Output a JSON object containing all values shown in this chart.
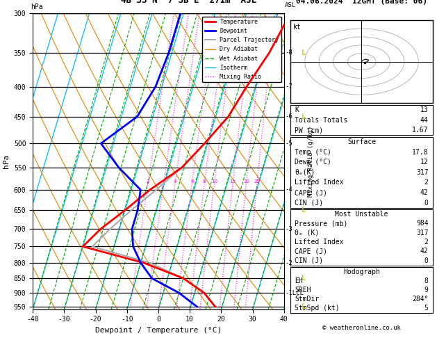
{
  "title_left": "4B°33'N  7°3B'E  271m  ASL",
  "title_right": "04.06.2024  12GMT (Base: 06)",
  "xlabel": "Dewpoint / Temperature (°C)",
  "ylabel_left": "hPa",
  "pressure_ticks": [
    300,
    350,
    400,
    450,
    500,
    550,
    600,
    650,
    700,
    750,
    800,
    850,
    900,
    950
  ],
  "km_labels": [
    [
      "8",
      350
    ],
    [
      "7",
      400
    ],
    [
      "6",
      450
    ],
    [
      "5",
      500
    ],
    [
      "4",
      600
    ],
    [
      "3",
      700
    ],
    [
      "2",
      800
    ],
    [
      "1LCL",
      900
    ]
  ],
  "temp_x": [
    14,
    11,
    7,
    4,
    -1,
    -6,
    -14,
    -20,
    -26,
    -30,
    -9,
    5,
    13,
    17.8
  ],
  "temp_p": [
    300,
    350,
    400,
    450,
    500,
    550,
    600,
    650,
    700,
    750,
    800,
    850,
    900,
    950
  ],
  "temp_color": "#ff0000",
  "dewp_x": [
    -21,
    -21,
    -22,
    -25,
    -34,
    -26,
    -17,
    -16,
    -16,
    -14,
    -10,
    -5,
    5,
    12
  ],
  "dewp_p": [
    300,
    350,
    400,
    450,
    500,
    550,
    600,
    650,
    700,
    750,
    800,
    850,
    900,
    950
  ],
  "dewp_color": "#0000ff",
  "parcel_x": [
    14,
    11,
    7,
    4,
    -1,
    -6,
    -12,
    -18,
    -23,
    -27,
    -7,
    5,
    13,
    17.8
  ],
  "parcel_p": [
    300,
    350,
    400,
    450,
    500,
    550,
    600,
    650,
    700,
    750,
    800,
    850,
    900,
    950
  ],
  "parcel_color": "#aaaaaa",
  "T_min": -40,
  "T_max": 40,
  "P_min": 300,
  "P_max": 960,
  "isotherm_color": "#00bbff",
  "dry_adiabat_color": "#dd8800",
  "wet_adiabat_color": "#00aa00",
  "mixing_ratio_color": "#ff00ff",
  "mixing_ratio_values": [
    2,
    3,
    4,
    6,
    8,
    10,
    15,
    20,
    25
  ],
  "skew_factor": 28,
  "info_K": "13",
  "info_TT": "44",
  "info_PW": "1.67",
  "info_surf_temp": "17.8",
  "info_surf_dewp": "12",
  "info_surf_theta": "317",
  "info_surf_li": "2",
  "info_surf_cape": "42",
  "info_surf_cin": "0",
  "info_mu_press": "984",
  "info_mu_theta": "317",
  "info_mu_li": "2",
  "info_mu_cape": "42",
  "info_mu_cin": "0",
  "info_eh": "8",
  "info_sreh": "9",
  "info_stmdir": "284°",
  "info_stmspd": "5",
  "copyright": "© weatheronline.co.uk",
  "lcl_pressure": 900,
  "yellow_barb_pressures": [
    350,
    450,
    650,
    850,
    950
  ],
  "wind_barb_color": "#cccc00"
}
